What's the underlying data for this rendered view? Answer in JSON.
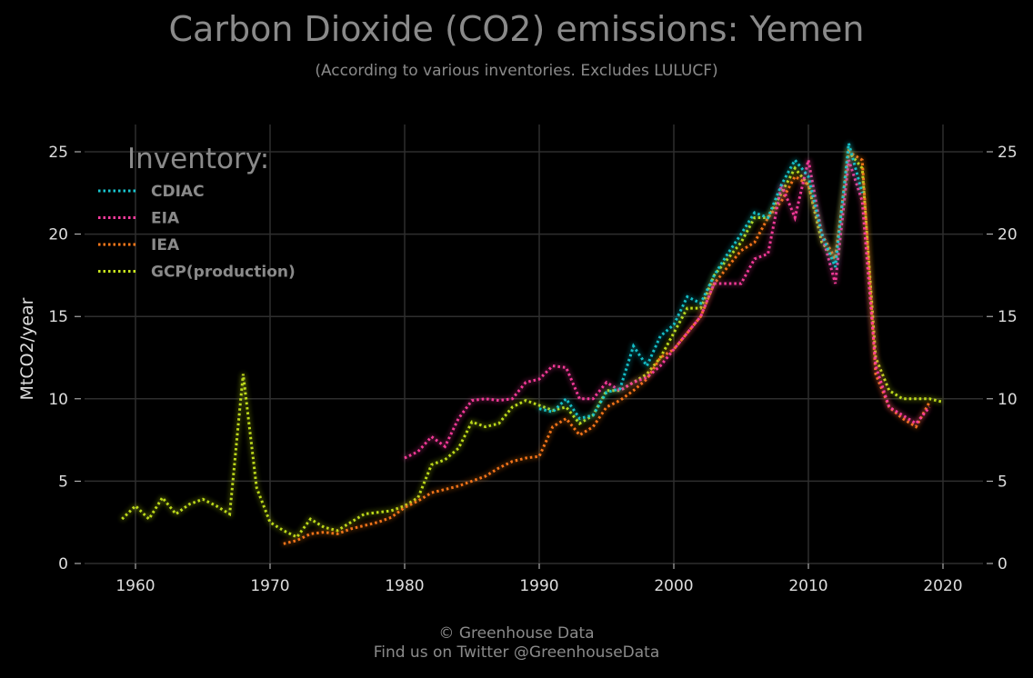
{
  "title": "Carbon Dioxide (CO2) emissions: Yemen",
  "subtitle": "(According to various inventories. Excludes LULUCF)",
  "footer": {
    "line1": "© Greenhouse Data",
    "line2": "Find us on Twitter @GreenhouseData"
  },
  "chart_data": {
    "type": "line",
    "ylabel": "MtCO2/year",
    "xlabel": "",
    "xlim": [
      1956,
      2023
    ],
    "ylim": [
      0,
      26
    ],
    "x_ticks": [
      1960,
      1970,
      1980,
      1990,
      2000,
      2010,
      2020
    ],
    "y_ticks": [
      0,
      5,
      10,
      15,
      20,
      25
    ],
    "grid": true,
    "legend": {
      "title": "Inventory:",
      "position": "top-left"
    },
    "series": [
      {
        "name": "CDIAC",
        "color": "#19c8d2",
        "x": [
          1990,
          1991,
          1992,
          1993,
          1994,
          1995,
          1996,
          1997,
          1998,
          1999,
          2000,
          2001,
          2002,
          2003,
          2004,
          2005,
          2006,
          2007,
          2008,
          2009,
          2010,
          2011,
          2012,
          2013,
          2014
        ],
        "values": [
          9.4,
          9.2,
          10.0,
          8.8,
          9.0,
          10.4,
          10.6,
          13.2,
          12.0,
          13.8,
          14.5,
          16.2,
          15.8,
          17.5,
          18.8,
          20.0,
          21.3,
          21.0,
          23.0,
          24.5,
          23.5,
          20.0,
          18.0,
          25.5,
          22.5
        ]
      },
      {
        "name": "EIA",
        "color": "#ff3ca0",
        "x": [
          1980,
          1981,
          1982,
          1983,
          1984,
          1985,
          1986,
          1987,
          1988,
          1989,
          1990,
          1991,
          1992,
          1993,
          1994,
          1995,
          1996,
          1997,
          1998,
          1999,
          2000,
          2001,
          2002,
          2003,
          2004,
          2005,
          2006,
          2007,
          2008,
          2009,
          2010,
          2011,
          2012,
          2013,
          2014,
          2015,
          2016,
          2017,
          2018,
          2019
        ],
        "values": [
          6.4,
          6.8,
          7.7,
          7.1,
          8.8,
          9.9,
          10.0,
          9.9,
          10.0,
          11.0,
          11.2,
          12.0,
          11.9,
          10.0,
          10.0,
          11.0,
          10.5,
          11.0,
          11.3,
          12.0,
          13.0,
          14.0,
          15.0,
          17.0,
          17.0,
          17.0,
          18.5,
          18.8,
          23.0,
          21.0,
          24.5,
          20.0,
          17.0,
          24.5,
          22.0,
          12.0,
          9.5,
          9.0,
          8.5,
          9.5
        ]
      },
      {
        "name": "IEA",
        "color": "#ff7a1a",
        "x": [
          1971,
          1972,
          1973,
          1974,
          1975,
          1976,
          1977,
          1978,
          1979,
          1980,
          1981,
          1982,
          1983,
          1984,
          1985,
          1986,
          1987,
          1988,
          1989,
          1990,
          1991,
          1992,
          1993,
          1994,
          1995,
          1996,
          1997,
          1998,
          1999,
          2000,
          2001,
          2002,
          2003,
          2004,
          2005,
          2006,
          2007,
          2008,
          2009,
          2010,
          2011,
          2012,
          2013,
          2014,
          2015,
          2016,
          2017,
          2018,
          2019
        ],
        "values": [
          1.2,
          1.4,
          1.8,
          1.9,
          1.8,
          2.1,
          2.3,
          2.5,
          2.8,
          3.4,
          3.8,
          4.3,
          4.5,
          4.7,
          5.0,
          5.3,
          5.8,
          6.2,
          6.4,
          6.5,
          8.3,
          8.8,
          7.8,
          8.3,
          9.5,
          9.9,
          10.5,
          11.2,
          12.5,
          13.0,
          14.0,
          15.0,
          17.0,
          18.0,
          19.0,
          19.5,
          21.0,
          22.0,
          23.5,
          23.0,
          20.0,
          18.5,
          25.0,
          24.5,
          11.5,
          9.5,
          8.8,
          8.3,
          9.8
        ]
      },
      {
        "name": "GCP(production)",
        "color": "#c8e61e",
        "x": [
          1959,
          1960,
          1961,
          1962,
          1963,
          1964,
          1965,
          1966,
          1967,
          1968,
          1969,
          1970,
          1971,
          1972,
          1973,
          1974,
          1975,
          1976,
          1977,
          1978,
          1979,
          1980,
          1981,
          1982,
          1983,
          1984,
          1985,
          1986,
          1987,
          1988,
          1989,
          1990,
          1991,
          1992,
          1993,
          1994,
          1995,
          1996,
          1997,
          1998,
          1999,
          2000,
          2001,
          2002,
          2003,
          2004,
          2005,
          2006,
          2007,
          2008,
          2009,
          2010,
          2011,
          2012,
          2013,
          2014,
          2015,
          2016,
          2017,
          2018,
          2019,
          2020
        ],
        "values": [
          2.7,
          3.5,
          2.7,
          4.0,
          3.0,
          3.6,
          3.9,
          3.5,
          3.0,
          11.5,
          4.6,
          2.5,
          2.0,
          1.6,
          2.7,
          2.2,
          2.0,
          2.5,
          3.0,
          3.1,
          3.2,
          3.5,
          4.0,
          6.0,
          6.3,
          7.0,
          8.6,
          8.3,
          8.5,
          9.5,
          9.9,
          9.6,
          9.3,
          9.5,
          8.5,
          9.0,
          10.5,
          10.5,
          11.0,
          11.5,
          12.5,
          14.0,
          15.5,
          15.5,
          17.5,
          18.5,
          19.5,
          21.0,
          21.0,
          22.5,
          24.0,
          23.0,
          19.5,
          18.5,
          25.0,
          24.0,
          12.5,
          10.5,
          10.0,
          10.0,
          10.0,
          9.8
        ]
      }
    ]
  }
}
